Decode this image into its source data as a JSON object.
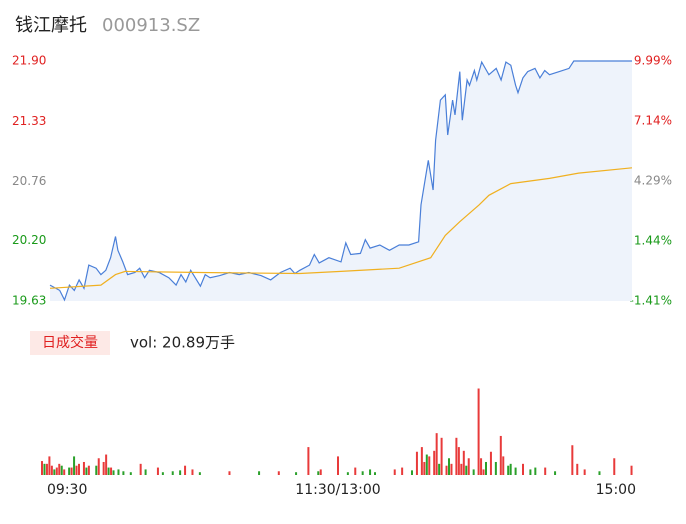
{
  "header": {
    "name": "钱江摩托",
    "code": "000913.SZ"
  },
  "chart_data": [
    {
      "type": "line",
      "ylim": [
        19.63,
        21.9
      ],
      "yticks": [
        19.63,
        {
          "value": 20.2,
          "label": "20.20"
        },
        20.76,
        21.33,
        {
          "value": 21.9,
          "label": "21.90"
        }
      ],
      "ytick_colors": [
        "#1a9a1a",
        "#1a9a1a",
        "#888888",
        "#e02020",
        "#e02020"
      ],
      "y2lim": [
        -1.41,
        9.99
      ],
      "y2ticks": [
        {
          "value": -1.41,
          "label": "-1.41%"
        },
        {
          "value": 1.44,
          "label": "1.44%"
        },
        {
          "value": 4.29,
          "label": "4.29%"
        },
        {
          "value": 7.14,
          "label": "7.14%"
        },
        {
          "value": 9.99,
          "label": "9.99%"
        }
      ],
      "y2tick_colors": [
        "#1a9a1a",
        "#1a9a1a",
        "#888888",
        "#e02020",
        "#e02020"
      ],
      "xlim": [
        0,
        240
      ],
      "area_color": "#eef3fb",
      "series": [
        {
          "color": "#4a7fd8",
          "x": [
            0,
            4,
            6,
            8,
            10,
            12,
            14,
            16,
            19,
            21,
            23,
            25,
            27,
            28,
            30,
            32,
            35,
            37,
            39,
            41,
            45,
            49,
            52,
            54,
            56,
            58,
            62,
            64,
            66,
            70,
            74,
            78,
            82,
            87,
            91,
            95,
            99,
            101,
            103,
            107,
            109,
            111,
            115,
            120,
            122,
            124,
            128,
            130,
            132,
            136,
            140,
            144,
            148,
            152,
            153,
            156,
            158,
            159,
            161,
            163,
            164,
            166,
            167,
            169,
            170,
            172,
            173,
            175,
            176,
            178,
            180,
            181,
            184,
            186,
            188,
            190,
            192,
            193,
            195,
            197,
            200,
            202,
            204,
            206,
            210,
            214,
            216,
            240
          ],
          "values": [
            19.78,
            19.73,
            19.64,
            19.78,
            19.73,
            19.83,
            19.75,
            19.97,
            19.94,
            19.88,
            19.92,
            20.04,
            20.24,
            20.11,
            20.0,
            19.88,
            19.9,
            19.94,
            19.85,
            19.92,
            19.9,
            19.85,
            19.78,
            19.88,
            19.81,
            19.92,
            19.77,
            19.88,
            19.85,
            19.87,
            19.9,
            19.88,
            19.9,
            19.87,
            19.83,
            19.9,
            19.94,
            19.89,
            19.92,
            19.97,
            20.07,
            19.99,
            20.04,
            20.0,
            20.18,
            20.07,
            20.08,
            20.21,
            20.13,
            20.16,
            20.11,
            20.16,
            20.16,
            20.19,
            20.54,
            20.96,
            20.68,
            21.15,
            21.53,
            21.58,
            21.2,
            21.53,
            21.39,
            21.8,
            21.34,
            21.72,
            21.67,
            21.81,
            21.72,
            21.89,
            21.81,
            21.77,
            21.83,
            21.72,
            21.89,
            21.86,
            21.67,
            21.6,
            21.74,
            21.8,
            21.83,
            21.74,
            21.81,
            21.77,
            21.8,
            21.83,
            21.9,
            21.9
          ]
        },
        {
          "color": "#f0b020",
          "x": [
            0,
            21,
            27,
            31,
            62,
            103,
            120,
            144,
            157,
            163,
            169,
            177,
            181,
            190,
            206,
            218,
            240
          ],
          "values": [
            19.75,
            19.78,
            19.88,
            19.91,
            19.9,
            19.89,
            19.91,
            19.94,
            20.04,
            20.25,
            20.38,
            20.54,
            20.63,
            20.74,
            20.79,
            20.84,
            20.89
          ]
        }
      ]
    },
    {
      "type": "bar",
      "badge": "日成交量",
      "title": "vol: 20.89万手",
      "badge_color": "#fde9e6",
      "ylim": [
        0,
        100
      ],
      "xlim": [
        0,
        240
      ],
      "xticks": [
        {
          "value": 0,
          "label": "09:30"
        },
        {
          "value": 120,
          "label": "11:30/13:00"
        },
        {
          "value": 240,
          "label": "15:00"
        }
      ],
      "series": [
        {
          "color": "#e83a3a",
          "x": [
            0,
            2,
            3,
            4,
            6,
            7,
            9,
            12,
            14,
            15,
            17,
            19,
            23,
            25,
            26,
            28,
            40,
            47,
            58,
            61,
            76,
            96,
            108,
            113,
            120,
            127,
            143,
            146,
            152,
            154,
            155,
            157,
            159,
            160,
            162,
            164,
            166,
            168,
            169,
            170,
            171,
            173,
            177,
            178,
            179,
            182,
            186,
            187,
            195,
            204,
            215,
            217,
            220,
            232,
            239
          ],
          "values": [
            15,
            12,
            20,
            10,
            8,
            12,
            6,
            8,
            10,
            12,
            14,
            10,
            18,
            14,
            22,
            8,
            12,
            8,
            10,
            6,
            4,
            4,
            30,
            6,
            20,
            8,
            6,
            8,
            25,
            30,
            14,
            20,
            26,
            45,
            40,
            10,
            12,
            40,
            30,
            12,
            26,
            18,
            93,
            18,
            6,
            25,
            42,
            20,
            12,
            8,
            32,
            12,
            6,
            18,
            10
          ]
        },
        {
          "color": "#2aa02a",
          "x": [
            1,
            5,
            8,
            11,
            13,
            18,
            22,
            27,
            29,
            31,
            33,
            36,
            42,
            49,
            53,
            56,
            64,
            88,
            103,
            112,
            124,
            130,
            133,
            135,
            150,
            156,
            161,
            165,
            172,
            175,
            180,
            184,
            189,
            190,
            192,
            198,
            200,
            208,
            226
          ],
          "values": [
            12,
            6,
            10,
            8,
            20,
            8,
            10,
            8,
            5,
            6,
            4,
            3,
            6,
            3,
            4,
            5,
            3,
            4,
            3,
            4,
            3,
            4,
            6,
            3,
            5,
            22,
            12,
            18,
            10,
            6,
            14,
            14,
            10,
            12,
            8,
            6,
            8,
            4,
            4
          ]
        }
      ]
    }
  ]
}
